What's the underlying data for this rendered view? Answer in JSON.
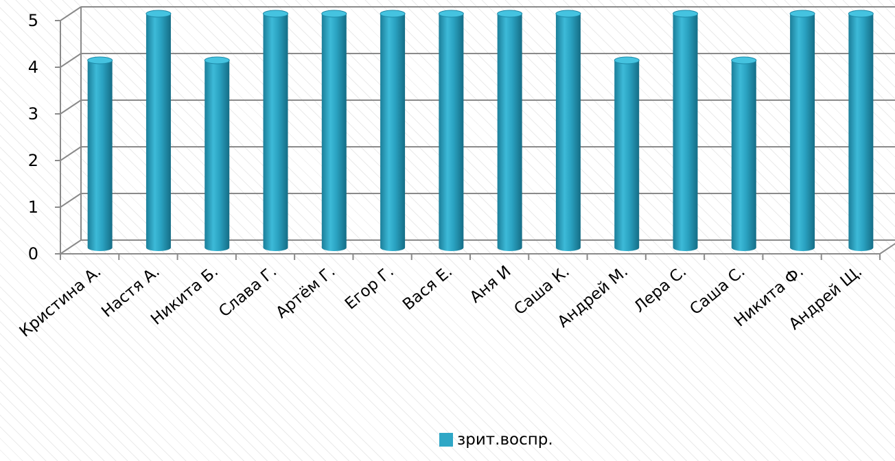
{
  "chart_data": {
    "type": "bar",
    "style": "3d-cylinder",
    "categories": [
      "Кристина А.",
      "Настя А.",
      "Никита Б.",
      "Слава Г.",
      "Артём Г.",
      "Егор Г.",
      "Вася Е.",
      "Аня И",
      "Саша К.",
      "Андрей М.",
      "Лера С.",
      "Саша С.",
      "Никита Ф.",
      "Андрей Щ."
    ],
    "series": [
      {
        "name": "зрит.воспр.",
        "values": [
          4,
          5,
          4,
          5,
          5,
          5,
          5,
          5,
          5,
          4,
          5,
          4,
          5,
          5
        ],
        "color": "#2fa7c6"
      }
    ],
    "ylim": [
      0,
      5
    ],
    "yticks": [
      0,
      1,
      2,
      3,
      4,
      5
    ],
    "grid": true,
    "legend": "bottom"
  }
}
